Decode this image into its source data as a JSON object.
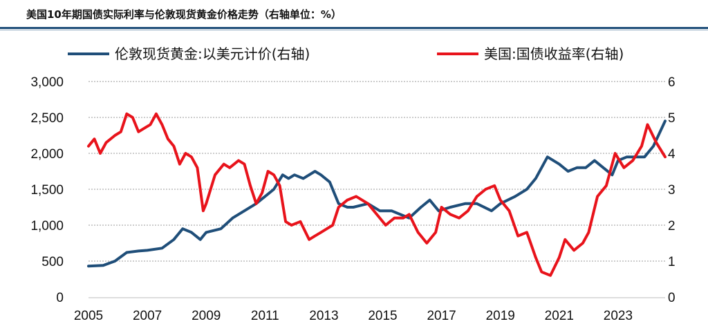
{
  "chart_data": {
    "type": "line",
    "title": "美国10年期国债实际利率与伦敦现货黄金价格走势（右轴单位：%）",
    "legend_position": "top",
    "grid": true,
    "x_ticks": [
      "2005",
      "2007",
      "2009",
      "2011",
      "2013",
      "2015",
      "2017",
      "2019",
      "2021",
      "2023"
    ],
    "x_range": [
      2005,
      2024.6
    ],
    "y_left": {
      "ticks": [
        "3,000",
        "2,500",
        "2,000",
        "1,500",
        "1,000",
        "500",
        "0"
      ],
      "range": [
        0,
        3000
      ]
    },
    "y_right": {
      "ticks": [
        "6",
        "5",
        "4",
        "3",
        "2",
        "1",
        "0"
      ],
      "range": [
        0,
        6
      ]
    },
    "series": [
      {
        "name": "伦敦现货黄金:以美元计价(右轴)",
        "axis": "left",
        "color": "#1f4e79",
        "x": [
          2005.0,
          2005.5,
          2005.9,
          2006.3,
          2006.7,
          2007.0,
          2007.5,
          2007.9,
          2008.2,
          2008.5,
          2008.8,
          2009.0,
          2009.5,
          2009.9,
          2010.3,
          2010.7,
          2011.0,
          2011.3,
          2011.6,
          2011.8,
          2012.0,
          2012.3,
          2012.7,
          2012.9,
          2013.2,
          2013.5,
          2013.8,
          2014.0,
          2014.5,
          2014.9,
          2015.3,
          2015.9,
          2016.3,
          2016.6,
          2016.9,
          2017.3,
          2017.8,
          2018.2,
          2018.7,
          2019.0,
          2019.5,
          2019.9,
          2020.2,
          2020.6,
          2021.0,
          2021.3,
          2021.6,
          2021.9,
          2022.2,
          2022.5,
          2022.8,
          2023.0,
          2023.3,
          2023.6,
          2023.9,
          2024.2,
          2024.6
        ],
        "y": [
          430,
          440,
          500,
          620,
          640,
          650,
          680,
          800,
          950,
          900,
          800,
          900,
          950,
          1100,
          1200,
          1300,
          1400,
          1500,
          1700,
          1650,
          1700,
          1650,
          1750,
          1700,
          1600,
          1300,
          1250,
          1250,
          1300,
          1200,
          1200,
          1100,
          1250,
          1350,
          1200,
          1250,
          1300,
          1300,
          1200,
          1300,
          1400,
          1500,
          1650,
          1950,
          1850,
          1750,
          1800,
          1800,
          1900,
          1800,
          1700,
          1900,
          1950,
          1950,
          1950,
          2100,
          2450
        ]
      },
      {
        "name": "美国:国债收益率(右轴)",
        "axis": "right",
        "color": "#e8131b",
        "x": [
          2005.0,
          2005.2,
          2005.4,
          2005.6,
          2005.9,
          2006.1,
          2006.3,
          2006.5,
          2006.7,
          2006.9,
          2007.1,
          2007.3,
          2007.5,
          2007.7,
          2007.9,
          2008.1,
          2008.3,
          2008.5,
          2008.7,
          2008.9,
          2009.0,
          2009.3,
          2009.6,
          2009.8,
          2010.1,
          2010.3,
          2010.5,
          2010.7,
          2010.9,
          2011.1,
          2011.3,
          2011.5,
          2011.7,
          2011.9,
          2012.2,
          2012.5,
          2012.7,
          2012.9,
          2013.1,
          2013.3,
          2013.5,
          2013.8,
          2014.1,
          2014.5,
          2014.9,
          2015.1,
          2015.4,
          2015.7,
          2015.9,
          2016.2,
          2016.5,
          2016.8,
          2017.0,
          2017.3,
          2017.6,
          2017.9,
          2018.2,
          2018.5,
          2018.8,
          2019.0,
          2019.3,
          2019.6,
          2019.9,
          2020.2,
          2020.4,
          2020.7,
          2021.0,
          2021.2,
          2021.5,
          2021.8,
          2022.0,
          2022.3,
          2022.6,
          2022.9,
          2023.2,
          2023.5,
          2023.8,
          2024.0,
          2024.3,
          2024.6
        ],
        "y": [
          4.2,
          4.4,
          4.0,
          4.3,
          4.5,
          4.6,
          5.1,
          5.0,
          4.6,
          4.7,
          4.8,
          5.1,
          4.8,
          4.4,
          4.2,
          3.7,
          4.0,
          3.9,
          3.6,
          2.4,
          2.6,
          3.4,
          3.7,
          3.6,
          3.8,
          3.7,
          3.1,
          2.6,
          2.9,
          3.5,
          3.4,
          3.1,
          2.1,
          2.0,
          2.1,
          1.6,
          1.7,
          1.8,
          1.9,
          2.0,
          2.5,
          2.7,
          2.8,
          2.6,
          2.2,
          2.0,
          2.2,
          2.2,
          2.3,
          1.8,
          1.5,
          1.8,
          2.5,
          2.3,
          2.2,
          2.4,
          2.8,
          3.0,
          3.1,
          2.7,
          2.4,
          1.7,
          1.8,
          1.1,
          0.7,
          0.6,
          1.1,
          1.6,
          1.3,
          1.5,
          1.8,
          2.8,
          3.1,
          4.0,
          3.6,
          3.8,
          4.2,
          4.8,
          4.3,
          3.9
        ]
      }
    ]
  }
}
